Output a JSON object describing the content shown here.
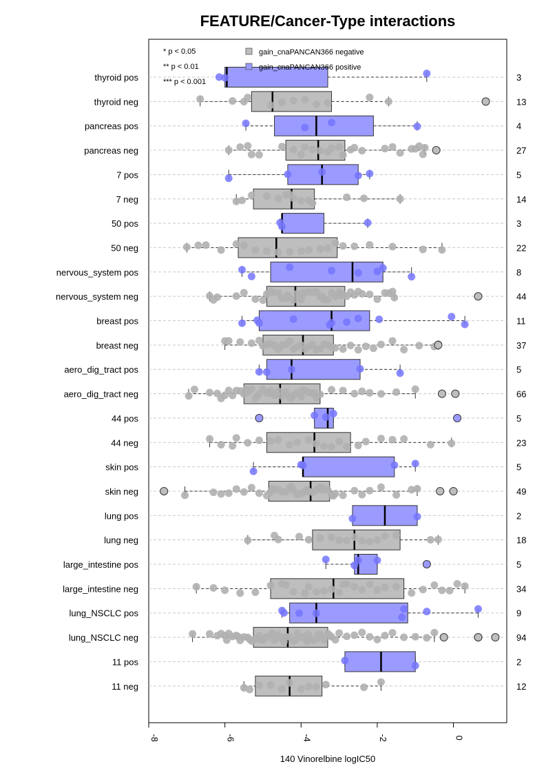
{
  "chart_data": {
    "type": "boxplot",
    "title": "FEATURE/Cancer-Type interactions",
    "xlabel": "140 Vinorelbine logIC50",
    "xlim": [
      -8,
      1.4
    ],
    "xticks": [
      -8,
      -6,
      -4,
      -2,
      0
    ],
    "xtick_labels": [
      "-8",
      "-6",
      "-4",
      "-2",
      "0"
    ],
    "significance_legend": [
      "* p < 0.05",
      "** p < 0.01",
      "*** p < 0.001"
    ],
    "legend": [
      {
        "name": "gain_cnaPANCAN366 negative",
        "color": "#bebebe"
      },
      {
        "name": "gain_cnaPANCAN366 positive",
        "color": "#9b9bff"
      }
    ],
    "colors": {
      "negative_box": "#bebebe",
      "positive_box": "#9b9bff",
      "negative_point": "#b0b0b0",
      "positive_point": "#7676ff",
      "grid": "#c8c8c8"
    },
    "grid": true,
    "rows": [
      {
        "label": "thyroid pos",
        "group": "positive",
        "n": "3",
        "whisker_low": -6.0,
        "q1": -6.0,
        "median": -5.95,
        "q3": -3.3,
        "whisker_high": -0.7,
        "points": [
          -6.15,
          -6.0,
          -0.7
        ],
        "outliers": []
      },
      {
        "label": "thyroid neg",
        "group": "negative",
        "n": "13",
        "whisker_low": -6.65,
        "q1": -5.3,
        "median": -4.75,
        "q3": -3.2,
        "whisker_high": -1.7,
        "points": [
          -6.65,
          -5.8,
          -5.5,
          -5.4,
          -4.8,
          -4.5,
          -4.2,
          -3.9,
          -3.6,
          -3.3,
          -2.2,
          -1.7
        ],
        "outliers": [
          0.85
        ]
      },
      {
        "label": "pancreas pos",
        "group": "positive",
        "n": "4",
        "whisker_low": -5.45,
        "q1": -4.7,
        "median": -3.6,
        "q3": -2.1,
        "whisker_high": -0.95,
        "points": [
          -5.45,
          -3.9,
          -3.2,
          -0.95
        ],
        "outliers": []
      },
      {
        "label": "pancreas neg",
        "group": "negative",
        "n": "27",
        "whisker_low": -5.9,
        "q1": -4.4,
        "median": -3.55,
        "q3": -2.85,
        "whisker_high": -0.75,
        "points": [
          -5.9,
          -5.6,
          -5.4,
          -5.3,
          -5.1,
          -4.5,
          -4.2,
          -4.0,
          -3.9,
          -3.7,
          -3.5,
          -3.3,
          -3.2,
          -3.0,
          -2.9,
          -2.7,
          -2.6,
          -2.4,
          -1.8,
          -1.6,
          -1.4,
          -1.1,
          -1.0,
          -0.9,
          -0.8,
          -0.75
        ],
        "outliers": [
          -0.45
        ]
      },
      {
        "label": "7 pos",
        "group": "positive",
        "n": "5",
        "whisker_low": -5.9,
        "q1": -4.35,
        "median": -3.45,
        "q3": -2.5,
        "whisker_high": -2.2,
        "points": [
          -5.9,
          -4.35,
          -3.45,
          -2.5,
          -2.2
        ],
        "outliers": []
      },
      {
        "label": "7 neg",
        "group": "negative",
        "n": "14",
        "whisker_low": -5.7,
        "q1": -5.25,
        "median": -4.25,
        "q3": -3.65,
        "whisker_high": -1.4,
        "points": [
          -5.7,
          -5.55,
          -5.3,
          -4.9,
          -4.6,
          -4.4,
          -4.3,
          -4.2,
          -4.0,
          -3.8,
          -3.7,
          -2.8,
          -2.35,
          -1.4
        ],
        "outliers": []
      },
      {
        "label": "50 pos",
        "group": "positive",
        "n": "3",
        "whisker_low": -4.55,
        "q1": -4.5,
        "median": -4.5,
        "q3": -3.4,
        "whisker_high": -2.25,
        "points": [
          -4.55,
          -4.5,
          -2.25
        ],
        "outliers": []
      },
      {
        "label": "50 neg",
        "group": "negative",
        "n": "22",
        "whisker_low": -7.0,
        "q1": -5.65,
        "median": -4.65,
        "q3": -3.05,
        "whisker_high": -0.3,
        "points": [
          -7.0,
          -6.7,
          -6.5,
          -6.1,
          -5.7,
          -5.5,
          -5.2,
          -4.9,
          -4.6,
          -4.3,
          -4.0,
          -3.8,
          -3.5,
          -3.3,
          -3.1,
          -2.9,
          -2.6,
          -2.2,
          -1.6,
          -0.8,
          -0.3
        ],
        "outliers": []
      },
      {
        "label": "nervous_system pos",
        "group": "positive",
        "n": "8",
        "whisker_low": -5.55,
        "q1": -4.8,
        "median": -2.65,
        "q3": -1.85,
        "whisker_high": -1.1,
        "points": [
          -5.55,
          -5.3,
          -4.3,
          -3.2,
          -2.5,
          -2.0,
          -1.85,
          -1.1
        ],
        "outliers": []
      },
      {
        "label": "nervous_system neg",
        "group": "negative",
        "n": "44",
        "whisker_low": -6.4,
        "q1": -4.9,
        "median": -4.15,
        "q3": -2.85,
        "whisker_high": -1.55,
        "points": [
          -6.4,
          -6.3,
          -6.2,
          -5.7,
          -5.5,
          -5.2,
          -5.0,
          -4.9,
          -4.8,
          -4.6,
          -4.5,
          -4.4,
          -4.3,
          -4.2,
          -4.1,
          -4.0,
          -3.9,
          -3.8,
          -3.7,
          -3.6,
          -3.5,
          -3.4,
          -3.3,
          -3.2,
          -3.1,
          -3.0,
          -2.9,
          -2.8,
          -2.7,
          -2.6,
          -2.4,
          -2.2,
          -2.0,
          -1.8,
          -1.7,
          -1.6,
          -1.55,
          -4.75,
          -4.35,
          -3.95,
          -3.45,
          -2.95,
          -2.5
        ],
        "outliers": [
          0.65
        ]
      },
      {
        "label": "breast pos",
        "group": "positive",
        "n": "11",
        "whisker_low": -5.55,
        "q1": -5.1,
        "median": -3.2,
        "q3": -2.2,
        "whisker_high": 0.3,
        "points": [
          -5.55,
          -5.15,
          -5.1,
          -4.2,
          -3.25,
          -3.2,
          -2.8,
          -2.5,
          -1.95,
          -0.05,
          0.3
        ],
        "outliers": []
      },
      {
        "label": "breast neg",
        "group": "negative",
        "n": "37",
        "whisker_low": -6.0,
        "q1": -5.0,
        "median": -3.95,
        "q3": -3.15,
        "whisker_high": -0.4,
        "points": [
          -6.0,
          -5.9,
          -5.6,
          -5.3,
          -5.1,
          -5.0,
          -4.9,
          -4.8,
          -4.7,
          -4.6,
          -4.5,
          -4.4,
          -4.3,
          -4.2,
          -4.1,
          -4.0,
          -3.9,
          -3.8,
          -3.7,
          -3.6,
          -3.5,
          -3.4,
          -3.3,
          -3.2,
          -3.1,
          -2.9,
          -2.7,
          -2.5,
          -2.3,
          -2.1,
          -1.9,
          -1.6,
          -1.3,
          -0.9,
          -0.5,
          -0.4
        ],
        "outliers": [
          -0.4
        ]
      },
      {
        "label": "aero_dig_tract pos",
        "group": "positive",
        "n": "5",
        "whisker_low": -5.1,
        "q1": -4.9,
        "median": -4.25,
        "q3": -2.45,
        "whisker_high": -1.4,
        "points": [
          -5.1,
          -4.9,
          -4.25,
          -2.45,
          -1.4
        ],
        "outliers": []
      },
      {
        "label": "aero_dig_tract neg",
        "group": "negative",
        "n": "66",
        "whisker_low": -6.95,
        "q1": -5.5,
        "median": -4.55,
        "q3": -3.5,
        "whisker_high": -1.0,
        "points": [
          -6.95,
          -6.8,
          -6.4,
          -6.2,
          -6.1,
          -6.0,
          -5.9,
          -5.8,
          -5.7,
          -5.6,
          -5.5,
          -5.4,
          -5.3,
          -5.2,
          -5.1,
          -5.0,
          -4.9,
          -4.8,
          -4.7,
          -4.6,
          -4.5,
          -4.4,
          -4.3,
          -4.2,
          -4.1,
          -4.0,
          -3.9,
          -3.8,
          -3.7,
          -3.6,
          -3.5,
          -3.2,
          -2.9,
          -2.6,
          -2.4,
          -2.2,
          -1.9,
          -1.5,
          -1.0,
          -5.45,
          -5.15,
          -4.85,
          -4.65,
          -4.25,
          -3.95,
          -3.65
        ],
        "outliers": [
          -0.3,
          0.05
        ]
      },
      {
        "label": "44 pos",
        "group": "positive",
        "n": "5",
        "whisker_low": -3.65,
        "q1": -3.65,
        "median": -3.3,
        "q3": -3.15,
        "whisker_high": -3.15,
        "points": [
          -3.65,
          -3.35,
          -3.15
        ],
        "outliers": [
          -5.1,
          0.1
        ]
      },
      {
        "label": "44 neg",
        "group": "negative",
        "n": "23",
        "whisker_low": -6.4,
        "q1": -4.9,
        "median": -3.65,
        "q3": -2.7,
        "whisker_high": -0.05,
        "points": [
          -6.4,
          -6.1,
          -5.8,
          -5.7,
          -5.4,
          -5.1,
          -4.8,
          -4.6,
          -4.3,
          -4.1,
          -3.8,
          -3.6,
          -3.4,
          -3.2,
          -3.0,
          -2.8,
          -2.5,
          -2.3,
          -1.9,
          -1.6,
          -1.3,
          -0.6,
          -0.05
        ],
        "outliers": []
      },
      {
        "label": "skin pos",
        "group": "positive",
        "n": "5",
        "whisker_low": -5.25,
        "q1": -3.95,
        "median": -3.95,
        "q3": -1.55,
        "whisker_high": -1.0,
        "points": [
          -5.25,
          -4.0,
          -3.95,
          -1.55,
          -1.0
        ],
        "outliers": []
      },
      {
        "label": "skin neg",
        "group": "negative",
        "n": "49",
        "whisker_low": -7.05,
        "q1": -4.85,
        "median": -3.75,
        "q3": -3.25,
        "whisker_high": -0.95,
        "points": [
          -7.05,
          -6.3,
          -6.1,
          -5.9,
          -5.7,
          -5.5,
          -5.3,
          -5.1,
          -4.9,
          -4.8,
          -4.7,
          -4.6,
          -4.5,
          -4.4,
          -4.3,
          -4.2,
          -4.1,
          -4.0,
          -3.9,
          -3.8,
          -3.7,
          -3.6,
          -3.5,
          -3.4,
          -3.3,
          -3.2,
          -3.1,
          -2.9,
          -2.6,
          -2.4,
          -2.2,
          -1.9,
          -1.5,
          -1.1,
          -0.95,
          -4.75,
          -4.25,
          -3.85,
          -3.45,
          -3.15
        ],
        "outliers": [
          -7.6,
          -0.35,
          0.0
        ]
      },
      {
        "label": "lung pos",
        "group": "positive",
        "n": "2",
        "whisker_low": -2.65,
        "q1": -2.65,
        "median": -1.8,
        "q3": -0.95,
        "whisker_high": -0.95,
        "points": [
          -2.65,
          -0.95
        ],
        "outliers": []
      },
      {
        "label": "lung neg",
        "group": "negative",
        "n": "18",
        "whisker_low": -5.4,
        "q1": -3.7,
        "median": -2.6,
        "q3": -1.4,
        "whisker_high": -0.4,
        "points": [
          -5.4,
          -4.7,
          -4.6,
          -4.05,
          -3.8,
          -3.5,
          -3.2,
          -3.0,
          -2.8,
          -2.6,
          -2.4,
          -2.2,
          -2.0,
          -1.8,
          -1.5,
          -0.6,
          -0.4
        ],
        "outliers": []
      },
      {
        "label": "large_intestine pos",
        "group": "positive",
        "n": "5",
        "whisker_low": -3.35,
        "q1": -2.6,
        "median": -2.5,
        "q3": -2.0,
        "whisker_high": -2.0,
        "points": [
          -3.35,
          -2.6,
          -2.5,
          -2.0
        ],
        "outliers": [
          -0.7
        ]
      },
      {
        "label": "large_intestine neg",
        "group": "negative",
        "n": "34",
        "whisker_low": -6.75,
        "q1": -4.8,
        "median": -3.15,
        "q3": -1.3,
        "whisker_high": 0.3,
        "points": [
          -6.75,
          -6.3,
          -6.0,
          -5.6,
          -5.2,
          -4.8,
          -4.5,
          -4.2,
          -3.9,
          -3.6,
          -3.4,
          -3.2,
          -3.0,
          -2.8,
          -2.6,
          -2.4,
          -2.2,
          -2.0,
          -1.8,
          -1.5,
          -1.1,
          -0.8,
          -0.5,
          -0.3,
          -0.1,
          0.1,
          0.3,
          -4.4,
          -3.8,
          -2.9
        ],
        "outliers": []
      },
      {
        "label": "lung_NSCLC pos",
        "group": "positive",
        "n": "9",
        "whisker_low": -4.5,
        "q1": -4.3,
        "median": -3.6,
        "q3": -1.2,
        "whisker_high": 0.65,
        "points": [
          -4.5,
          -4.45,
          -4.05,
          -3.6,
          -1.35,
          -1.3,
          -0.7,
          0.65
        ],
        "outliers": []
      },
      {
        "label": "lung_NSCLC neg",
        "group": "negative",
        "n": "94",
        "whisker_low": -6.85,
        "q1": -5.25,
        "median": -4.35,
        "q3": -3.3,
        "whisker_high": -0.5,
        "points": [
          -6.85,
          -6.4,
          -6.2,
          -6.1,
          -6.0,
          -5.9,
          -5.8,
          -5.7,
          -5.6,
          -5.5,
          -5.4,
          -5.3,
          -5.2,
          -5.1,
          -5.0,
          -4.9,
          -4.8,
          -4.7,
          -4.6,
          -4.5,
          -4.4,
          -4.3,
          -4.2,
          -4.1,
          -4.0,
          -3.9,
          -3.8,
          -3.7,
          -3.6,
          -3.5,
          -3.4,
          -3.3,
          -3.2,
          -3.1,
          -3.0,
          -2.8,
          -2.6,
          -2.4,
          -2.2,
          -2.0,
          -1.8,
          -1.6,
          -1.3,
          -1.0,
          -0.7,
          -0.5,
          -5.95,
          -5.65,
          -5.35,
          -5.05,
          -4.75,
          -4.45,
          -4.15,
          -3.85,
          -3.55,
          -3.25
        ],
        "outliers": [
          -0.25,
          0.65,
          1.1,
          0.65
        ]
      },
      {
        "label": "11 pos",
        "group": "positive",
        "n": "2",
        "whisker_low": -2.85,
        "q1": -2.85,
        "median": -1.9,
        "q3": -1.0,
        "whisker_high": -1.0,
        "points": [
          -2.85,
          -1.0
        ],
        "outliers": []
      },
      {
        "label": "11 neg",
        "group": "negative",
        "n": "12",
        "whisker_low": -5.5,
        "q1": -5.2,
        "median": -4.3,
        "q3": -3.45,
        "whisker_high": -1.9,
        "points": [
          -5.5,
          -5.35,
          -5.1,
          -4.8,
          -4.5,
          -4.3,
          -4.0,
          -3.8,
          -3.6,
          -3.35,
          -2.35,
          -1.9
        ],
        "outliers": []
      }
    ]
  }
}
